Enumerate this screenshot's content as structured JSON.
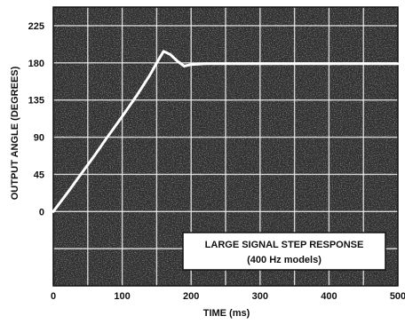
{
  "chart_data": {
    "type": "line",
    "xlabel": "TIME (ms)",
    "ylabel": "OUTPUT ANGLE (DEGREES)",
    "xlim": [
      0,
      500
    ],
    "ylim": [
      -90,
      247.5
    ],
    "x_ticks": [
      0,
      100,
      200,
      300,
      400,
      500
    ],
    "x_tick_labels": [
      "0",
      "100",
      "200",
      "300",
      "400",
      "500"
    ],
    "y_ticks": [
      0,
      45,
      90,
      135,
      180,
      225
    ],
    "y_tick_labels": [
      "0",
      "45",
      "90",
      "135",
      "180",
      "225"
    ],
    "grid": true,
    "annotation": {
      "lines": [
        "LARGE SIGNAL STEP RESPONSE",
        "(400 Hz models)"
      ],
      "placement": "bottom-right"
    },
    "series": [
      {
        "x": [
          0,
          10,
          20,
          40,
          60,
          80,
          100,
          120,
          140,
          150,
          160,
          170,
          180,
          190,
          200,
          220,
          250,
          300,
          350,
          400,
          450,
          500
        ],
        "y": [
          0,
          11,
          22,
          45,
          68,
          92,
          115,
          139,
          165,
          180,
          194,
          190,
          182,
          176,
          178,
          179,
          179,
          179,
          179,
          179,
          179,
          179
        ]
      }
    ],
    "colors": {
      "plot_background": "#2e2e2e",
      "grid": "#f0f0f0",
      "line": "#ffffff"
    }
  }
}
